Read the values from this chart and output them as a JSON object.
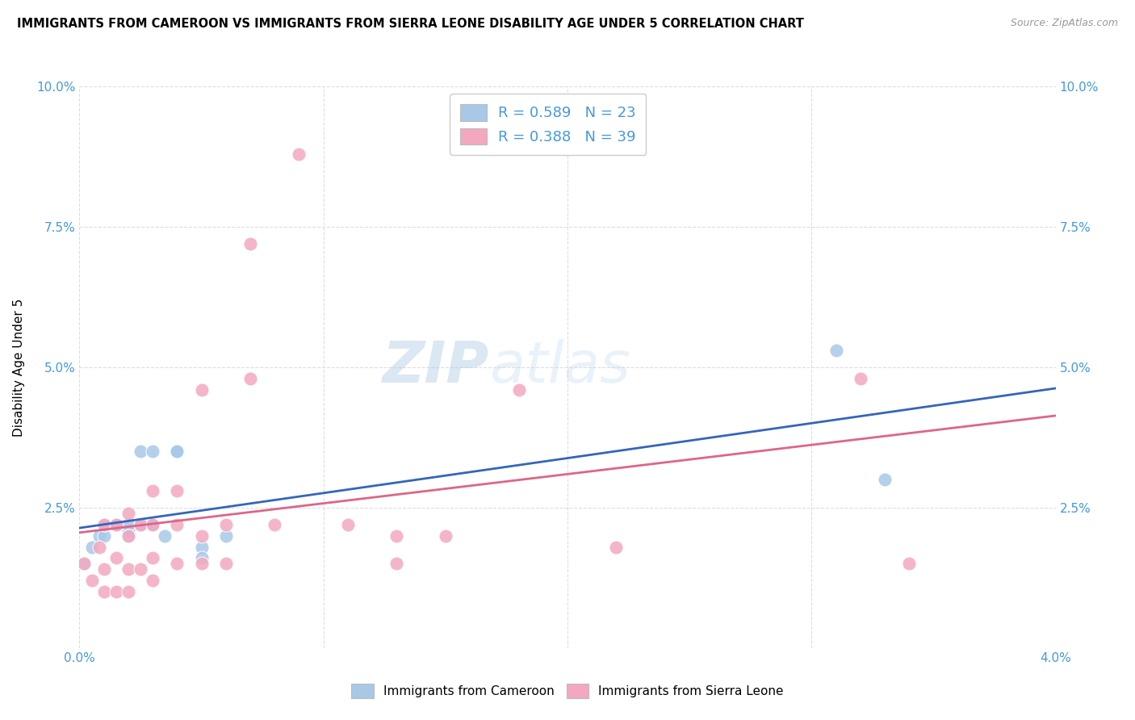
{
  "title": "IMMIGRANTS FROM CAMEROON VS IMMIGRANTS FROM SIERRA LEONE DISABILITY AGE UNDER 5 CORRELATION CHART",
  "source": "Source: ZipAtlas.com",
  "ylabel": "Disability Age Under 5",
  "xlim": [
    0.0,
    0.04
  ],
  "ylim": [
    0.0,
    0.1
  ],
  "yticks": [
    0.0,
    0.025,
    0.05,
    0.075,
    0.1
  ],
  "ytick_labels_left": [
    "",
    "2.5%",
    "5.0%",
    "7.5%",
    "10.0%"
  ],
  "ytick_labels_right": [
    "",
    "2.5%",
    "5.0%",
    "7.5%",
    "10.0%"
  ],
  "xticks": [
    0.0,
    0.01,
    0.02,
    0.03,
    0.04
  ],
  "xtick_labels": [
    "0.0%",
    "",
    "",
    "",
    "4.0%"
  ],
  "legend_label1": "R = 0.589   N = 23",
  "legend_label2": "R = 0.388   N = 39",
  "legend_color1": "#a8c8e8",
  "legend_color2": "#f4a8c0",
  "line_color1": "#3366bb",
  "line_color2": "#dd6688",
  "scatter_color1": "#a8c8e8",
  "scatter_color2": "#f4a8c0",
  "watermark": "ZIPatlas",
  "bottom_label1": "Immigrants from Cameroon",
  "bottom_label2": "Immigrants from Sierra Leone",
  "tick_color": "#4499dd",
  "grid_color": "#dddddd",
  "cameroon_x": [
    0.0002,
    0.0005,
    0.0008,
    0.001,
    0.001,
    0.0015,
    0.0015,
    0.002,
    0.002,
    0.002,
    0.0025,
    0.0025,
    0.003,
    0.003,
    0.003,
    0.0035,
    0.004,
    0.004,
    0.005,
    0.005,
    0.006,
    0.031,
    0.033
  ],
  "cameroon_y": [
    0.015,
    0.018,
    0.02,
    0.02,
    0.022,
    0.022,
    0.022,
    0.021,
    0.022,
    0.02,
    0.022,
    0.035,
    0.035,
    0.022,
    0.022,
    0.02,
    0.035,
    0.035,
    0.018,
    0.016,
    0.02,
    0.053,
    0.03
  ],
  "sierraleone_x": [
    0.0002,
    0.0005,
    0.0008,
    0.001,
    0.001,
    0.001,
    0.0015,
    0.0015,
    0.0015,
    0.002,
    0.002,
    0.002,
    0.002,
    0.0025,
    0.0025,
    0.003,
    0.003,
    0.003,
    0.003,
    0.004,
    0.004,
    0.004,
    0.005,
    0.005,
    0.005,
    0.006,
    0.006,
    0.007,
    0.007,
    0.008,
    0.009,
    0.011,
    0.013,
    0.013,
    0.015,
    0.018,
    0.022,
    0.032,
    0.034
  ],
  "sierraleone_y": [
    0.015,
    0.012,
    0.018,
    0.01,
    0.014,
    0.022,
    0.01,
    0.016,
    0.022,
    0.01,
    0.014,
    0.02,
    0.024,
    0.014,
    0.022,
    0.012,
    0.016,
    0.022,
    0.028,
    0.015,
    0.022,
    0.028,
    0.015,
    0.02,
    0.046,
    0.015,
    0.022,
    0.048,
    0.072,
    0.022,
    0.088,
    0.022,
    0.015,
    0.02,
    0.02,
    0.046,
    0.018,
    0.048,
    0.015
  ]
}
